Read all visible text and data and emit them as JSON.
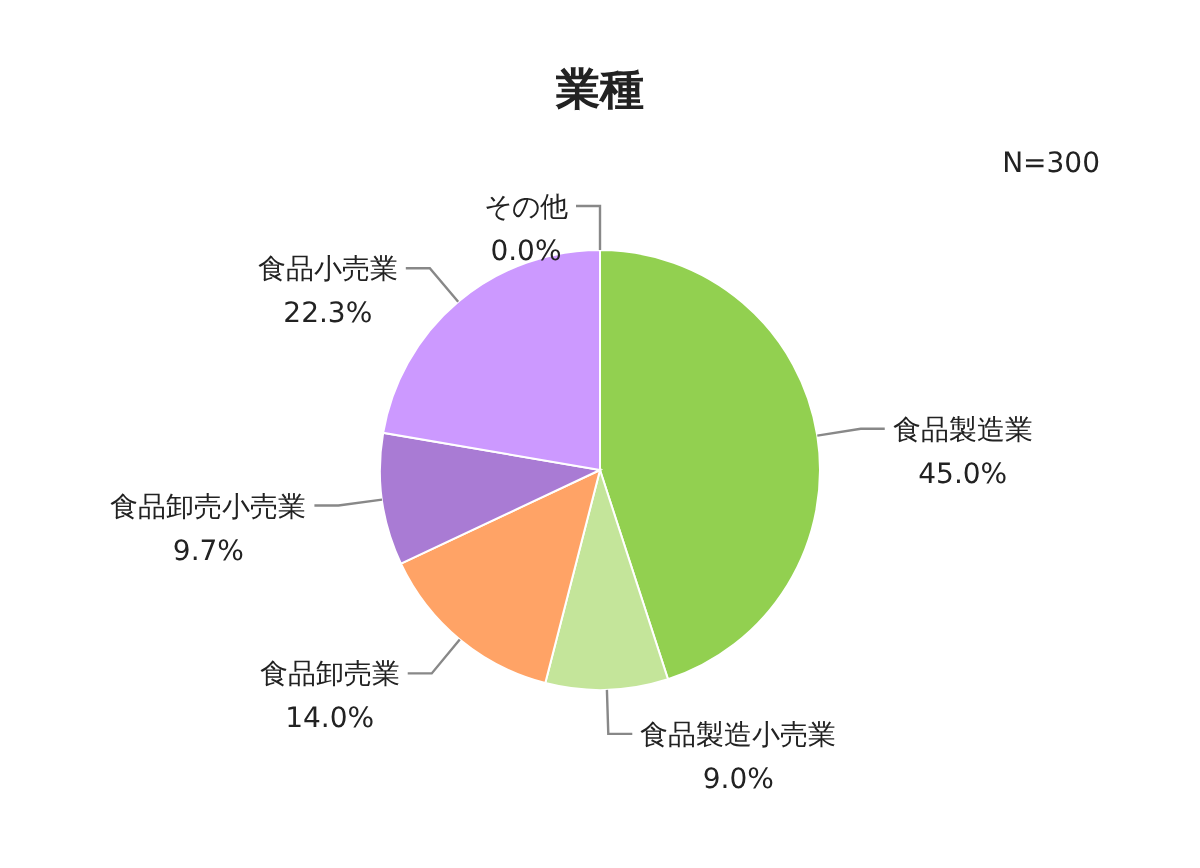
{
  "chart_data": {
    "type": "pie",
    "title": "業種",
    "annotations": [
      "N=300"
    ],
    "categories": [
      "食品製造業",
      "食品製造小売業",
      "食品卸売業",
      "食品卸売小売業",
      "食品小売業",
      "その他"
    ],
    "values": [
      45.0,
      9.0,
      14.0,
      9.7,
      22.3,
      0.0
    ],
    "colors": [
      "#92d050",
      "#c4e59a",
      "#ffa366",
      "#a97bd4",
      "#cc99ff",
      "#7f7f7f"
    ],
    "value_labels": [
      "45.0%",
      "9.0%",
      "14.0%",
      "9.7%",
      "22.3%",
      "0.0%"
    ],
    "legend": false
  }
}
